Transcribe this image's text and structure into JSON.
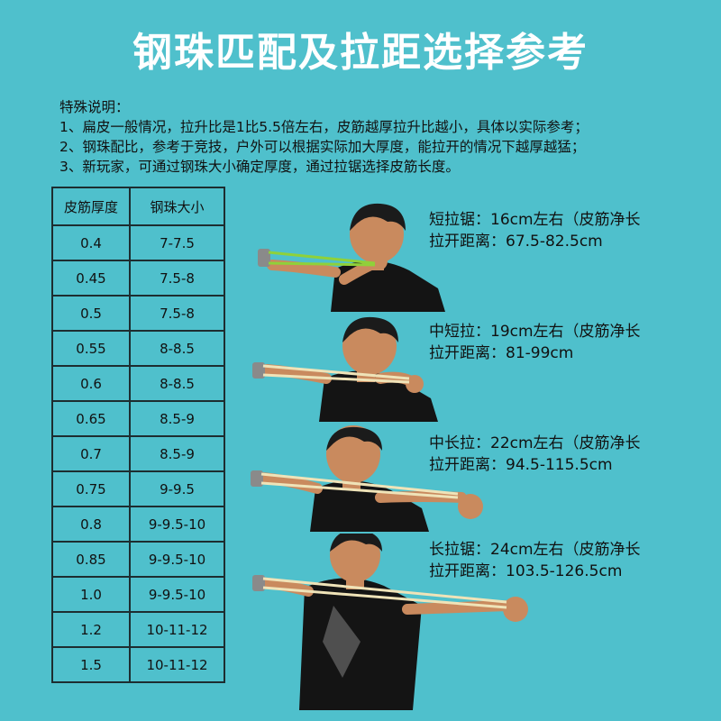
{
  "title": "钢珠匹配及拉距选择参考",
  "notes": {
    "heading": "特殊说明：",
    "lines": [
      "1、扁皮一般情况，拉升比是1比5.5倍左右，皮筋越厚拉升比越小，具体以实际参考；",
      "2、钢珠配比，参考于竞技，户外可以根据实际加大厚度，能拉开的情况下越厚越猛；",
      "3、新玩家，可通过钢珠大小确定厚度，通过拉锯选择皮筋长度。"
    ]
  },
  "table": {
    "headers": [
      "皮筋厚度",
      "钢珠大小"
    ],
    "rows": [
      [
        "0.4",
        "7-7.5"
      ],
      [
        "0.45",
        "7.5-8"
      ],
      [
        "0.5",
        "7.5-8"
      ],
      [
        "0.55",
        "8-8.5"
      ],
      [
        "0.6",
        "8-8.5"
      ],
      [
        "0.65",
        "8.5-9"
      ],
      [
        "0.7",
        "8.5-9"
      ],
      [
        "0.75",
        "9-9.5"
      ],
      [
        "0.8",
        "9-9.5-10"
      ],
      [
        "0.85",
        "9-9.5-10"
      ],
      [
        "1.0",
        "9-9.5-10"
      ],
      [
        "1.2",
        "10-11-12"
      ],
      [
        "1.5",
        "10-11-12"
      ]
    ]
  },
  "pulls": [
    {
      "line1": "短拉锯：16cm左右（皮筋净长",
      "line2": "拉开距离：67.5-82.5cm"
    },
    {
      "line1": "中短拉：19cm左右（皮筋净长",
      "line2": "拉开距离：81-99cm"
    },
    {
      "line1": "中长拉：22cm左右（皮筋净长",
      "line2": "拉开距离：94.5-115.5cm"
    },
    {
      "line1": "长拉锯：24cm左右（皮筋净长",
      "line2": "拉开距离：103.5-126.5cm"
    }
  ],
  "colors": {
    "background": "#4fc0cc",
    "title": "#ffffff",
    "band_green": "#8fd13a",
    "band_tan": "#efe3b8",
    "skin": "#c98a5e",
    "hair": "#1b1b1b",
    "shirt": "#141414"
  }
}
